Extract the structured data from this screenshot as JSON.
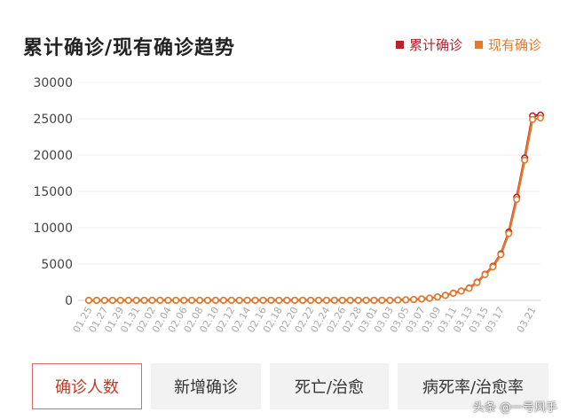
{
  "header": {
    "title": "累计确诊/现有确诊趋势"
  },
  "legend": [
    {
      "label": "累计确诊",
      "color": "#b5222a"
    },
    {
      "label": "现有确诊",
      "color": "#e07b2c"
    }
  ],
  "tabs": [
    {
      "label": "确诊人数",
      "active": true
    },
    {
      "label": "新增确诊",
      "active": false
    },
    {
      "label": "死亡/治愈",
      "active": false
    },
    {
      "label": "病死率/治愈率",
      "active": false
    }
  ],
  "watermark": "头条 @一号风手",
  "chart_data": {
    "type": "line",
    "ylim": [
      0,
      30000
    ],
    "yticks": [
      0,
      5000,
      10000,
      15000,
      20000,
      25000,
      30000
    ],
    "grid": true,
    "legend_position": "top-right",
    "x": [
      "01.25",
      "01.26",
      "01.27",
      "01.28",
      "01.29",
      "01.30",
      "01.31",
      "02.01",
      "02.02",
      "02.03",
      "02.04",
      "02.05",
      "02.06",
      "02.07",
      "02.08",
      "02.09",
      "02.10",
      "02.11",
      "02.12",
      "02.13",
      "02.14",
      "02.15",
      "02.16",
      "02.17",
      "02.18",
      "02.19",
      "02.20",
      "02.21",
      "02.22",
      "02.23",
      "02.24",
      "02.25",
      "02.26",
      "02.27",
      "02.28",
      "02.29",
      "03.01",
      "03.02",
      "03.03",
      "03.04",
      "03.05",
      "03.06",
      "03.07",
      "03.08",
      "03.09",
      "03.10",
      "03.11",
      "03.12",
      "03.13",
      "03.14",
      "03.15",
      "03.16",
      "03.17",
      "03.18",
      "03.19",
      "03.20",
      "03.21",
      "03.22"
    ],
    "xtick_labels": [
      "01.25",
      "01.27",
      "01.29",
      "01.31",
      "02.02",
      "02.04",
      "02.06",
      "02.08",
      "02.10",
      "02.12",
      "02.14",
      "02.16",
      "02.18",
      "02.20",
      "02.22",
      "02.24",
      "02.26",
      "02.28",
      "03.01",
      "03.03",
      "03.05",
      "03.07",
      "03.09",
      "03.11",
      "03.13",
      "03.15",
      "03.17",
      "03.21"
    ],
    "series": [
      {
        "name": "累计确诊",
        "color": "#b5222a",
        "values": [
          2,
          2,
          5,
          5,
          5,
          6,
          6,
          6,
          8,
          11,
          11,
          12,
          12,
          12,
          12,
          12,
          12,
          13,
          13,
          13,
          13,
          15,
          15,
          15,
          15,
          15,
          15,
          15,
          15,
          15,
          15,
          15,
          15,
          15,
          15,
          15,
          15,
          15,
          15,
          40,
          70,
          120,
          200,
          300,
          480,
          700,
          1000,
          1300,
          1700,
          2500,
          3600,
          4700,
          6400,
          9400,
          14200,
          19600,
          25400,
          25500
        ]
      },
      {
        "name": "现有确诊",
        "color": "#e07b2c",
        "values": [
          2,
          2,
          5,
          5,
          5,
          6,
          6,
          6,
          8,
          11,
          11,
          12,
          12,
          12,
          12,
          12,
          12,
          12,
          12,
          12,
          12,
          12,
          12,
          12,
          12,
          12,
          12,
          12,
          12,
          12,
          12,
          12,
          12,
          12,
          12,
          12,
          12,
          12,
          12,
          40,
          70,
          120,
          200,
          300,
          470,
          690,
          980,
          1280,
          1670,
          2450,
          3550,
          4600,
          6300,
          9200,
          13900,
          19300,
          24900,
          25100
        ]
      }
    ]
  }
}
